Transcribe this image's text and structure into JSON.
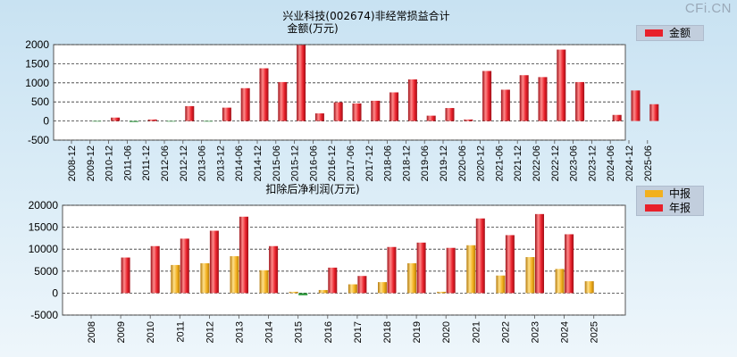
{
  "site": {
    "watermark": "CFi.CN"
  },
  "colors": {
    "red": "#e8202a",
    "red_dark": "#9e1018",
    "red_light": "#ff8a8a",
    "orange": "#f2b01e",
    "orange_dark": "#b57a0a",
    "orange_light": "#ffe08a",
    "green": "#2e9a3e",
    "grid": "#333333"
  },
  "chart_data": [
    {
      "type": "bar",
      "title": "兴业科技(002674)非经常损益合计",
      "subtitle": "金额(万元)",
      "ylim": [
        -500,
        2000
      ],
      "yticks": [
        -500,
        0,
        500,
        1000,
        1500,
        2000
      ],
      "legend": [
        {
          "name": "金额",
          "color": "#e8202a"
        }
      ],
      "categories": [
        "2008-12",
        "2009-12",
        "2010-12",
        "2011-06",
        "2011-12",
        "2012-06",
        "2012-12",
        "2013-06",
        "2013-12",
        "2014-06",
        "2014-12",
        "2015-06",
        "2015-12",
        "2016-06",
        "2016-12",
        "2017-06",
        "2017-12",
        "2018-06",
        "2018-12",
        "2019-06",
        "2019-12",
        "2020-06",
        "2020-12",
        "2021-06",
        "2021-12",
        "2022-06",
        "2022-12",
        "2023-06",
        "2023-12",
        "2024-06",
        "2024-12",
        "2025-06"
      ],
      "values": [
        0,
        -10,
        90,
        -25,
        40,
        -15,
        390,
        -15,
        350,
        860,
        1380,
        1020,
        1990,
        200,
        490,
        460,
        530,
        750,
        1090,
        140,
        340,
        40,
        1310,
        820,
        1200,
        1150,
        1870,
        1020,
        0,
        160,
        800,
        440
      ]
    },
    {
      "type": "bar",
      "title": "扣除后净利润(万元)",
      "ylim": [
        -5000,
        20000
      ],
      "yticks": [
        -5000,
        0,
        5000,
        10000,
        15000,
        20000
      ],
      "legend": [
        {
          "name": "中报",
          "color": "#f2b01e"
        },
        {
          "name": "年报",
          "color": "#e8202a"
        }
      ],
      "categories": [
        "2008",
        "2009",
        "2010",
        "2011",
        "2012",
        "2013",
        "2014",
        "2015",
        "2016",
        "2017",
        "2018",
        "2019",
        "2020",
        "2021",
        "2022",
        "2023",
        "2024",
        "2025"
      ],
      "series": [
        {
          "name": "中报",
          "values": [
            null,
            null,
            null,
            6400,
            6800,
            8400,
            5200,
            300,
            700,
            2000,
            2500,
            6800,
            300,
            10900,
            4000,
            8200,
            5500,
            2700
          ]
        },
        {
          "name": "年报",
          "values": [
            null,
            8100,
            10700,
            12400,
            14200,
            17400,
            10700,
            -500,
            5800,
            3900,
            10500,
            11500,
            10300,
            17000,
            13200,
            18000,
            13400,
            null
          ]
        }
      ]
    }
  ]
}
